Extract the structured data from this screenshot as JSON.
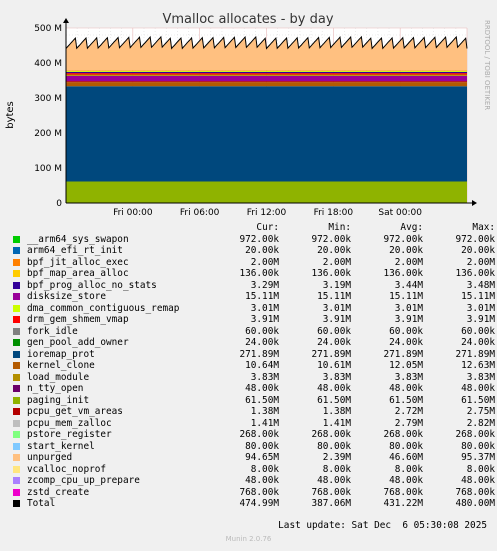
{
  "chart_data": {
    "type": "area",
    "title": "Vmalloc allocates - by day",
    "ylabel": "bytes",
    "side_label": "RRDTOOL / TOBI OETIKER",
    "y_ticks": [
      {
        "v": 0,
        "label": "0"
      },
      {
        "v": 100,
        "label": "100 M"
      },
      {
        "v": 200,
        "label": "200 M"
      },
      {
        "v": 300,
        "label": "300 M"
      },
      {
        "v": 400,
        "label": "400 M"
      },
      {
        "v": 500,
        "label": "500 M"
      }
    ],
    "x_ticks": [
      {
        "t": 6,
        "label": "Fri 00:00"
      },
      {
        "t": 12,
        "label": "Fri 06:00"
      },
      {
        "t": 18,
        "label": "Fri 12:00"
      },
      {
        "t": 24,
        "label": "Fri 18:00"
      },
      {
        "t": 30,
        "label": "Sat 00:00"
      }
    ],
    "xlim": [
      0,
      36
    ],
    "ylim": [
      0,
      500
    ],
    "grid": true,
    "stack_order": [
      "paging_init",
      "ioremap_prot",
      "kernel_clone",
      "pcpu_get_vm_areas",
      "disksize_store",
      "load_module",
      "drm_gem_shmem_vmap",
      "bpf_prog_alloc_no_stats",
      "dma_common_contiguous_remap",
      "bpf_jit_alloc_exec",
      "unpurged"
    ],
    "columns": [
      "Cur:",
      "Min:",
      "Avg:",
      "Max:"
    ],
    "series": [
      {
        "name": "__arm64_sys_swapon",
        "color": "#00cc00",
        "cur": "972.00k",
        "min": "972.00k",
        "avg": "972.00k",
        "max": "972.00k"
      },
      {
        "name": "arm64_efi_rt_init",
        "color": "#0066b3",
        "cur": "20.00k",
        "min": "20.00k",
        "avg": "20.00k",
        "max": "20.00k"
      },
      {
        "name": "bpf_jit_alloc_exec",
        "color": "#ff8000",
        "cur": "2.00M",
        "min": "2.00M",
        "avg": "2.00M",
        "max": "2.00M"
      },
      {
        "name": "bpf_map_area_alloc",
        "color": "#ffcc00",
        "cur": "136.00k",
        "min": "136.00k",
        "avg": "136.00k",
        "max": "136.00k"
      },
      {
        "name": "bpf_prog_alloc_no_stats",
        "color": "#330099",
        "cur": "3.29M",
        "min": "3.19M",
        "avg": "3.44M",
        "max": "3.48M"
      },
      {
        "name": "disksize_store",
        "color": "#990099",
        "cur": "15.11M",
        "min": "15.11M",
        "avg": "15.11M",
        "max": "15.11M"
      },
      {
        "name": "dma_common_contiguous_remap",
        "color": "#ccff00",
        "cur": "3.01M",
        "min": "3.01M",
        "avg": "3.01M",
        "max": "3.01M"
      },
      {
        "name": "drm_gem_shmem_vmap",
        "color": "#ff0000",
        "cur": "3.91M",
        "min": "3.91M",
        "avg": "3.91M",
        "max": "3.91M"
      },
      {
        "name": "fork_idle",
        "color": "#808080",
        "cur": "60.00k",
        "min": "60.00k",
        "avg": "60.00k",
        "max": "60.00k"
      },
      {
        "name": "gen_pool_add_owner",
        "color": "#008f00",
        "cur": "24.00k",
        "min": "24.00k",
        "avg": "24.00k",
        "max": "24.00k"
      },
      {
        "name": "ioremap_prot",
        "color": "#00487d",
        "cur": "271.89M",
        "min": "271.89M",
        "avg": "271.89M",
        "max": "271.89M"
      },
      {
        "name": "kernel_clone",
        "color": "#b35a00",
        "cur": "10.64M",
        "min": "10.61M",
        "avg": "12.05M",
        "max": "12.63M"
      },
      {
        "name": "load_module",
        "color": "#b38f00",
        "cur": "3.83M",
        "min": "3.83M",
        "avg": "3.83M",
        "max": "3.83M"
      },
      {
        "name": "n_tty_open",
        "color": "#6b006b",
        "cur": "48.00k",
        "min": "48.00k",
        "avg": "48.00k",
        "max": "48.00k"
      },
      {
        "name": "paging_init",
        "color": "#8fb300",
        "cur": "61.50M",
        "min": "61.50M",
        "avg": "61.50M",
        "max": "61.50M"
      },
      {
        "name": "pcpu_get_vm_areas",
        "color": "#b30000",
        "cur": "1.38M",
        "min": "1.38M",
        "avg": "2.72M",
        "max": "2.75M"
      },
      {
        "name": "pcpu_mem_zalloc",
        "color": "#bebebe",
        "cur": "1.41M",
        "min": "1.41M",
        "avg": "2.79M",
        "max": "2.82M"
      },
      {
        "name": "pstore_register",
        "color": "#80ff80",
        "cur": "268.00k",
        "min": "268.00k",
        "avg": "268.00k",
        "max": "268.00k"
      },
      {
        "name": "start_kernel",
        "color": "#80c9ff",
        "cur": "80.00k",
        "min": "80.00k",
        "avg": "80.00k",
        "max": "80.00k"
      },
      {
        "name": "unpurged",
        "color": "#ffc080",
        "cur": "94.65M",
        "min": "2.39M",
        "avg": "46.60M",
        "max": "95.37M"
      },
      {
        "name": "vcalloc_noprof",
        "color": "#ffe680",
        "cur": "8.00k",
        "min": "8.00k",
        "avg": "8.00k",
        "max": "8.00k"
      },
      {
        "name": "zcomp_cpu_up_prepare",
        "color": "#aa80ff",
        "cur": "48.00k",
        "min": "48.00k",
        "avg": "48.00k",
        "max": "48.00k"
      },
      {
        "name": "zstd_create",
        "color": "#ee00cc",
        "cur": "768.00k",
        "min": "768.00k",
        "avg": "768.00k",
        "max": "768.00k"
      },
      {
        "name": "Total",
        "color": "#000000",
        "cur": "474.99M",
        "min": "387.06M",
        "avg": "431.22M",
        "max": "480.00M"
      }
    ]
  },
  "footer": {
    "last_update": "Last update: Sat Dec  6 05:30:08 2025",
    "version": "Munin 2.0.76"
  }
}
